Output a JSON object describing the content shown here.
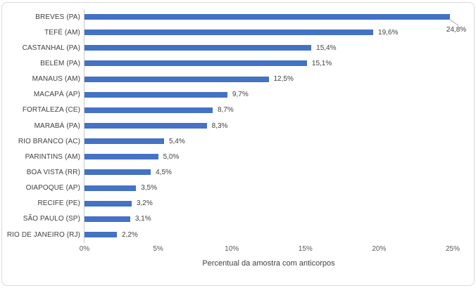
{
  "chart_data": {
    "type": "bar",
    "orientation": "horizontal",
    "title": "",
    "xlabel": "Percentual da amostra com anticorpos",
    "ylabel": "",
    "categories": [
      "BREVES (PA)",
      "TEFÉ (AM)",
      "CASTANHAL (PA)",
      "BELÉM (PA)",
      "MANAUS (AM)",
      "MACAPÁ (AP)",
      "FORTALEZA (CE)",
      "MARABÁ (PA)",
      "RIO BRANCO (AC)",
      "PARINTINS (AM)",
      "BOA VISTA (RR)",
      "OIAPOQUE (AP)",
      "RECIFE (PE)",
      "SÃO PAULO (SP)",
      "RIO DE JANEIRO (RJ)"
    ],
    "values": [
      24.8,
      19.6,
      15.4,
      15.1,
      12.5,
      9.7,
      8.7,
      8.3,
      5.4,
      5.0,
      4.5,
      3.5,
      3.2,
      3.1,
      2.2
    ],
    "labels": [
      "24,8%",
      "19,6%",
      "15,4%",
      "15,1%",
      "12,5%",
      "9,7%",
      "8,7%",
      "8,3%",
      "5,4%",
      "5,0%",
      "4,5%",
      "3,5%",
      "3,2%",
      "3,1%",
      "2,2%"
    ],
    "x_ticks": [
      "0%",
      "5%",
      "10%",
      "15%",
      "20%",
      "25%"
    ],
    "xlim": [
      0,
      25
    ],
    "grid": false,
    "legend": false,
    "bar_color": "#4472C4",
    "axis_line_color": "#C9C9C9",
    "text_color": "#404040",
    "tick_color": "#595959",
    "callout_index": 0,
    "callout_note": "top bar data label drawn below bar end with a leader line"
  }
}
